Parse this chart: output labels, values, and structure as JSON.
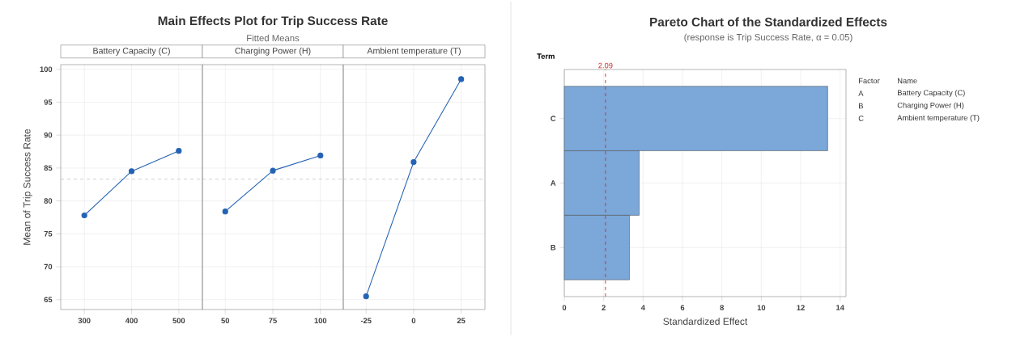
{
  "chart_data": [
    {
      "type": "line",
      "ylabel": "Mean of Trip Success Rate",
      "annotations": [
        "Battery Capacity (C)"
      ],
      "x": [
        300,
        400,
        500
      ],
      "series": [
        {
          "color": "#2462b4",
          "values": [
            77.8,
            84.5,
            87.6
          ]
        }
      ],
      "xlim": [
        250,
        550
      ],
      "ylim": [
        63.5,
        100.7
      ],
      "xticks": [
        300,
        400,
        500
      ],
      "yticks": [
        65,
        70,
        75,
        80,
        85,
        90,
        95,
        100
      ],
      "ref_lines": [
        {
          "axis": "y",
          "value": 83.3,
          "color": "#a8a8a8",
          "line_style": "dashed"
        }
      ],
      "grid": true,
      "marker": "circle"
    },
    {
      "type": "line",
      "title": "Main Effects Plot for Trip Success Rate",
      "subtitle": "Fitted Means",
      "annotations": [
        "Charging Power (H)"
      ],
      "x": [
        50,
        75,
        100
      ],
      "series": [
        {
          "color": "#2462b4",
          "values": [
            78.4,
            84.6,
            86.9
          ]
        }
      ],
      "xlim": [
        38,
        112
      ],
      "ylim": [
        63.5,
        100.7
      ],
      "xticks": [
        50,
        75,
        100
      ],
      "yticks": [
        65,
        70,
        75,
        80,
        85,
        90,
        95,
        100
      ],
      "tick_labels": "x",
      "ref_lines": [
        {
          "axis": "y",
          "value": 83.3,
          "color": "#a8a8a8",
          "line_style": "dashed"
        }
      ],
      "grid": true,
      "marker": "circle"
    },
    {
      "type": "line",
      "annotations": [
        "Ambient temperature (T)"
      ],
      "x": [
        -25,
        0,
        25
      ],
      "series": [
        {
          "color": "#2462b4",
          "values": [
            65.5,
            85.9,
            98.5
          ]
        }
      ],
      "xlim": [
        -37,
        37.5
      ],
      "ylim": [
        63.5,
        100.7
      ],
      "xticks": [
        -25,
        0,
        25
      ],
      "yticks": [
        65,
        70,
        75,
        80,
        85,
        90,
        95,
        100
      ],
      "tick_labels": "x",
      "ref_lines": [
        {
          "axis": "y",
          "value": 83.3,
          "color": "#a8a8a8",
          "line_style": "dashed"
        }
      ],
      "grid": true,
      "marker": "circle"
    },
    {
      "type": "bar",
      "orientation": "horizontal",
      "title": "Pareto Chart of the Standardized Effects",
      "subtitle": "(response is Trip Success Rate, α = 0.05)",
      "xlabel": "Standardized Effect",
      "ylabel": "Term",
      "categories": [
        "C",
        "A",
        "B"
      ],
      "values": [
        13.37,
        3.8,
        3.31
      ],
      "color": "#7ba7d9",
      "xlim": [
        0,
        14.3
      ],
      "xticks": [
        0,
        2,
        4,
        6,
        8,
        10,
        12,
        14
      ],
      "ref_lines": [
        {
          "axis": "x",
          "value": 2.09,
          "label": "2.09",
          "color": "#d0312d",
          "line_style": "dashed"
        }
      ],
      "grid": true,
      "annotations": [
        "Factor",
        "Name",
        "A",
        "Battery Capacity (C)",
        "B",
        "Charging Power (H)",
        "C",
        "Ambient temperature (T)"
      ]
    }
  ]
}
